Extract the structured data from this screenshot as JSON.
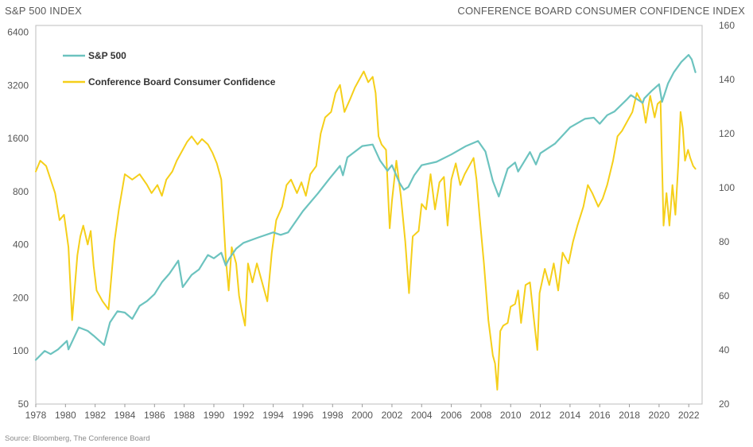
{
  "header": {
    "left_title": "S&P 500 INDEX",
    "right_title": "CONFERENCE BOARD CONSUMER CONFIDENCE INDEX"
  },
  "source": "Source: Bloomberg, The Conference Board",
  "colors": {
    "sp500": "#6cc3bf",
    "confidence": "#f5cf1a",
    "frame": "#bdbdbd"
  },
  "chart_data": {
    "type": "line",
    "title": "",
    "x_ticks": [
      "1978",
      "1980",
      "1982",
      "1984",
      "1986",
      "1988",
      "1990",
      "1992",
      "1994",
      "1996",
      "1998",
      "2000",
      "2002",
      "2004",
      "2006",
      "2008",
      "2010",
      "2012",
      "2014",
      "2016",
      "2018",
      "2020",
      "2022"
    ],
    "xlim": [
      1978,
      2022.9
    ],
    "y_left": {
      "scale": "log2",
      "ticks": [
        50,
        100,
        200,
        400,
        800,
        1600,
        3200,
        6400
      ],
      "lim": [
        50,
        7000
      ]
    },
    "y_right": {
      "scale": "linear",
      "ticks": [
        20,
        40,
        60,
        80,
        100,
        120,
        140,
        160
      ],
      "lim": [
        20,
        160
      ]
    },
    "legend_position": "top-left",
    "series": [
      {
        "name": "S&P 500",
        "axis": "left",
        "color": "#6cc3bf",
        "points": [
          [
            1978.0,
            89
          ],
          [
            1978.6,
            100
          ],
          [
            1979.0,
            96
          ],
          [
            1979.5,
            102
          ],
          [
            1980.1,
            114
          ],
          [
            1980.2,
            102
          ],
          [
            1980.9,
            136
          ],
          [
            1981.5,
            130
          ],
          [
            1981.9,
            122
          ],
          [
            1982.6,
            108
          ],
          [
            1983.0,
            145
          ],
          [
            1983.5,
            168
          ],
          [
            1984.0,
            165
          ],
          [
            1984.5,
            152
          ],
          [
            1985.0,
            180
          ],
          [
            1985.5,
            192
          ],
          [
            1986.0,
            210
          ],
          [
            1986.5,
            245
          ],
          [
            1987.0,
            274
          ],
          [
            1987.6,
            325
          ],
          [
            1987.9,
            230
          ],
          [
            1988.5,
            270
          ],
          [
            1989.0,
            290
          ],
          [
            1989.6,
            350
          ],
          [
            1990.0,
            335
          ],
          [
            1990.5,
            360
          ],
          [
            1990.8,
            305
          ],
          [
            1991.0,
            330
          ],
          [
            1991.5,
            380
          ],
          [
            1992.0,
            410
          ],
          [
            1993.0,
            440
          ],
          [
            1994.0,
            470
          ],
          [
            1994.5,
            455
          ],
          [
            1995.0,
            470
          ],
          [
            1996.0,
            620
          ],
          [
            1997.0,
            780
          ],
          [
            1997.8,
            950
          ],
          [
            1998.5,
            1120
          ],
          [
            1998.7,
            990
          ],
          [
            1999.0,
            1250
          ],
          [
            2000.0,
            1450
          ],
          [
            2000.7,
            1480
          ],
          [
            2001.2,
            1200
          ],
          [
            2001.7,
            1050
          ],
          [
            2002.0,
            1130
          ],
          [
            2002.5,
            900
          ],
          [
            2002.8,
            820
          ],
          [
            2003.1,
            850
          ],
          [
            2003.5,
            990
          ],
          [
            2004.0,
            1130
          ],
          [
            2005.0,
            1180
          ],
          [
            2006.0,
            1300
          ],
          [
            2007.0,
            1450
          ],
          [
            2007.8,
            1550
          ],
          [
            2008.3,
            1350
          ],
          [
            2008.8,
            920
          ],
          [
            2009.2,
            750
          ],
          [
            2009.8,
            1080
          ],
          [
            2010.3,
            1170
          ],
          [
            2010.5,
            1040
          ],
          [
            2011.3,
            1340
          ],
          [
            2011.7,
            1140
          ],
          [
            2012.0,
            1320
          ],
          [
            2013.0,
            1500
          ],
          [
            2014.0,
            1850
          ],
          [
            2015.0,
            2070
          ],
          [
            2015.6,
            2100
          ],
          [
            2016.0,
            1940
          ],
          [
            2016.5,
            2170
          ],
          [
            2017.0,
            2280
          ],
          [
            2017.8,
            2650
          ],
          [
            2018.1,
            2820
          ],
          [
            2018.9,
            2550
          ],
          [
            2019.0,
            2700
          ],
          [
            2019.5,
            2980
          ],
          [
            2020.0,
            3250
          ],
          [
            2020.2,
            2580
          ],
          [
            2020.6,
            3280
          ],
          [
            2021.0,
            3800
          ],
          [
            2021.5,
            4350
          ],
          [
            2021.99,
            4766
          ],
          [
            2022.2,
            4500
          ],
          [
            2022.45,
            3800
          ]
        ]
      },
      {
        "name": "Conference Board Consumer Confidence",
        "axis": "right",
        "color": "#f5cf1a",
        "points": [
          [
            1978.0,
            106
          ],
          [
            1978.3,
            110
          ],
          [
            1978.7,
            108
          ],
          [
            1979.0,
            103
          ],
          [
            1979.3,
            98
          ],
          [
            1979.6,
            88
          ],
          [
            1979.9,
            90
          ],
          [
            1980.2,
            78
          ],
          [
            1980.45,
            51
          ],
          [
            1980.8,
            75
          ],
          [
            1981.0,
            82
          ],
          [
            1981.2,
            86
          ],
          [
            1981.5,
            79
          ],
          [
            1981.7,
            84
          ],
          [
            1981.9,
            71
          ],
          [
            1982.1,
            62
          ],
          [
            1982.5,
            58
          ],
          [
            1982.9,
            55
          ],
          [
            1983.3,
            80
          ],
          [
            1983.6,
            92
          ],
          [
            1984.0,
            105
          ],
          [
            1984.5,
            103
          ],
          [
            1985.0,
            105
          ],
          [
            1985.5,
            101
          ],
          [
            1985.8,
            98
          ],
          [
            1986.2,
            101
          ],
          [
            1986.5,
            97
          ],
          [
            1986.8,
            103
          ],
          [
            1987.2,
            106
          ],
          [
            1987.5,
            110
          ],
          [
            1987.9,
            114
          ],
          [
            1988.2,
            117
          ],
          [
            1988.5,
            119
          ],
          [
            1988.9,
            116
          ],
          [
            1989.2,
            118
          ],
          [
            1989.6,
            116
          ],
          [
            1989.9,
            113
          ],
          [
            1990.2,
            109
          ],
          [
            1990.5,
            103
          ],
          [
            1990.8,
            74
          ],
          [
            1991.0,
            62
          ],
          [
            1991.2,
            78
          ],
          [
            1991.5,
            72
          ],
          [
            1991.7,
            60
          ],
          [
            1991.9,
            54
          ],
          [
            1992.1,
            49
          ],
          [
            1992.3,
            72
          ],
          [
            1992.6,
            65
          ],
          [
            1992.9,
            72
          ],
          [
            1993.2,
            66
          ],
          [
            1993.6,
            58
          ],
          [
            1993.9,
            76
          ],
          [
            1994.2,
            88
          ],
          [
            1994.6,
            93
          ],
          [
            1994.9,
            101
          ],
          [
            1995.2,
            103
          ],
          [
            1995.6,
            98
          ],
          [
            1995.9,
            102
          ],
          [
            1996.2,
            97
          ],
          [
            1996.5,
            105
          ],
          [
            1996.9,
            108
          ],
          [
            1997.2,
            120
          ],
          [
            1997.5,
            126
          ],
          [
            1997.9,
            128
          ],
          [
            1998.2,
            135
          ],
          [
            1998.5,
            138
          ],
          [
            1998.8,
            128
          ],
          [
            1999.2,
            133
          ],
          [
            1999.5,
            137
          ],
          [
            1999.9,
            141
          ],
          [
            2000.1,
            143
          ],
          [
            2000.4,
            139
          ],
          [
            2000.7,
            141
          ],
          [
            2000.9,
            135
          ],
          [
            2001.1,
            119
          ],
          [
            2001.3,
            116
          ],
          [
            2001.6,
            114
          ],
          [
            2001.85,
            85
          ],
          [
            2002.0,
            95
          ],
          [
            2002.3,
            110
          ],
          [
            2002.6,
            97
          ],
          [
            2002.9,
            80
          ],
          [
            2003.15,
            61
          ],
          [
            2003.4,
            82
          ],
          [
            2003.8,
            84
          ],
          [
            2004.0,
            94
          ],
          [
            2004.3,
            92
          ],
          [
            2004.6,
            105
          ],
          [
            2004.9,
            92
          ],
          [
            2005.2,
            102
          ],
          [
            2005.5,
            104
          ],
          [
            2005.75,
            86
          ],
          [
            2006.0,
            103
          ],
          [
            2006.3,
            109
          ],
          [
            2006.6,
            101
          ],
          [
            2006.9,
            105
          ],
          [
            2007.2,
            108
          ],
          [
            2007.5,
            111
          ],
          [
            2007.7,
            103
          ],
          [
            2007.9,
            90
          ],
          [
            2008.2,
            72
          ],
          [
            2008.5,
            51
          ],
          [
            2008.8,
            38
          ],
          [
            2008.95,
            35
          ],
          [
            2009.1,
            25.3
          ],
          [
            2009.3,
            47
          ],
          [
            2009.5,
            49
          ],
          [
            2009.8,
            50
          ],
          [
            2010.0,
            56
          ],
          [
            2010.3,
            57
          ],
          [
            2010.5,
            62
          ],
          [
            2010.7,
            50
          ],
          [
            2011.0,
            64
          ],
          [
            2011.3,
            65
          ],
          [
            2011.55,
            52
          ],
          [
            2011.8,
            40
          ],
          [
            2011.95,
            61
          ],
          [
            2012.3,
            70
          ],
          [
            2012.6,
            64
          ],
          [
            2012.9,
            72
          ],
          [
            2013.2,
            62
          ],
          [
            2013.5,
            76
          ],
          [
            2013.9,
            72
          ],
          [
            2014.2,
            80
          ],
          [
            2014.5,
            86
          ],
          [
            2014.9,
            93
          ],
          [
            2015.2,
            101
          ],
          [
            2015.5,
            98
          ],
          [
            2015.9,
            93
          ],
          [
            2016.2,
            96
          ],
          [
            2016.5,
            101
          ],
          [
            2016.9,
            110
          ],
          [
            2017.2,
            119
          ],
          [
            2017.5,
            121
          ],
          [
            2017.9,
            125
          ],
          [
            2018.2,
            128
          ],
          [
            2018.5,
            135
          ],
          [
            2018.9,
            131
          ],
          [
            2019.1,
            124
          ],
          [
            2019.4,
            134
          ],
          [
            2019.7,
            126
          ],
          [
            2019.9,
            131
          ],
          [
            2020.1,
            132
          ],
          [
            2020.3,
            86
          ],
          [
            2020.5,
            98
          ],
          [
            2020.7,
            86
          ],
          [
            2020.9,
            101
          ],
          [
            2021.1,
            90
          ],
          [
            2021.3,
            109
          ],
          [
            2021.45,
            128
          ],
          [
            2021.6,
            122
          ],
          [
            2021.75,
            110
          ],
          [
            2021.95,
            114
          ],
          [
            2022.1,
            111
          ],
          [
            2022.3,
            108
          ],
          [
            2022.45,
            107
          ]
        ]
      }
    ]
  }
}
